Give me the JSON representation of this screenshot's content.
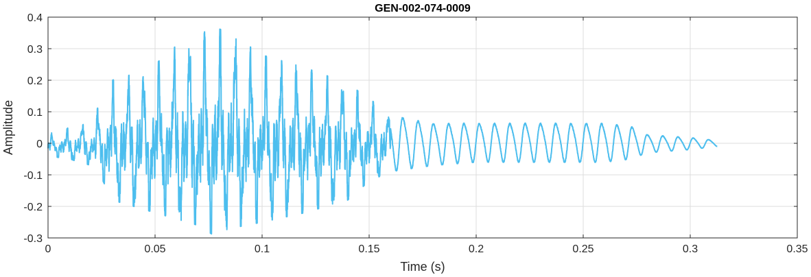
{
  "chart_data": {
    "type": "line",
    "title": "GEN-002-074-0009",
    "xlabel": "Time (s)",
    "ylabel": "Amplitude",
    "xlim": [
      0,
      0.35
    ],
    "ylim": [
      -0.3,
      0.4
    ],
    "xticks": [
      0,
      0.05,
      0.1,
      0.15,
      0.2,
      0.25,
      0.3,
      0.35
    ],
    "xtick_labels": [
      "0",
      "0.05",
      "0.1",
      "0.15",
      "0.2",
      "0.25",
      "0.3",
      "0.35"
    ],
    "yticks": [
      -0.3,
      -0.2,
      -0.1,
      0,
      0.1,
      0.2,
      0.3,
      0.4
    ],
    "ytick_labels": [
      "-0.3",
      "-0.2",
      "-0.1",
      "0",
      "0.1",
      "0.2",
      "0.3",
      "0.4"
    ],
    "grid": true,
    "line_color": "#4DBEEE",
    "series": [
      {
        "x_range": [
          0,
          0.3125
        ],
        "description_note": "",
        "envelope": [
          {
            "t": 0.0,
            "max": 0.03,
            "min": -0.04
          },
          {
            "t": 0.01,
            "max": 0.05,
            "min": -0.05
          },
          {
            "t": 0.02,
            "max": 0.08,
            "min": -0.07
          },
          {
            "t": 0.025,
            "max": 0.13,
            "min": -0.11
          },
          {
            "t": 0.03,
            "max": 0.2,
            "min": -0.18
          },
          {
            "t": 0.04,
            "max": 0.22,
            "min": -0.2
          },
          {
            "t": 0.05,
            "max": 0.25,
            "min": -0.22
          },
          {
            "t": 0.06,
            "max": 0.31,
            "min": -0.24
          },
          {
            "t": 0.07,
            "max": 0.34,
            "min": -0.26
          },
          {
            "t": 0.077,
            "max": 0.37,
            "min": -0.29
          },
          {
            "t": 0.085,
            "max": 0.35,
            "min": -0.27
          },
          {
            "t": 0.1,
            "max": 0.28,
            "min": -0.25
          },
          {
            "t": 0.12,
            "max": 0.24,
            "min": -0.22
          },
          {
            "t": 0.14,
            "max": 0.19,
            "min": -0.18
          },
          {
            "t": 0.15,
            "max": 0.14,
            "min": -0.12
          },
          {
            "t": 0.16,
            "max": 0.1,
            "min": -0.09
          },
          {
            "t": 0.18,
            "max": 0.07,
            "min": -0.07
          },
          {
            "t": 0.2,
            "max": 0.07,
            "min": -0.06
          },
          {
            "t": 0.23,
            "max": 0.07,
            "min": -0.06
          },
          {
            "t": 0.26,
            "max": 0.07,
            "min": -0.06
          },
          {
            "t": 0.272,
            "max": 0.06,
            "min": -0.05
          },
          {
            "t": 0.28,
            "max": 0.03,
            "min": -0.03
          },
          {
            "t": 0.3,
            "max": 0.02,
            "min": -0.02
          },
          {
            "t": 0.3125,
            "max": 0.01,
            "min": -0.01
          }
        ]
      }
    ]
  }
}
